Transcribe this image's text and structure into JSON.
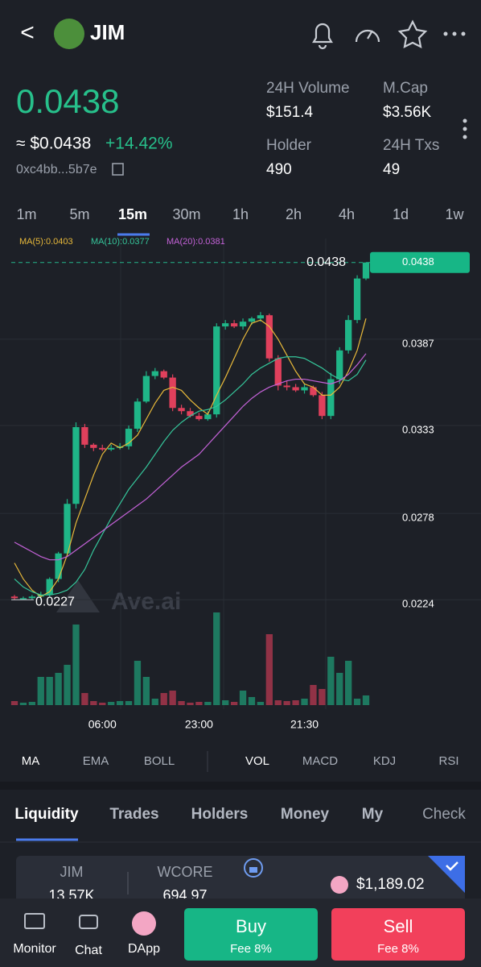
{
  "header": {
    "back": "<",
    "token": "JIM"
  },
  "price": {
    "main": "0.0438",
    "usd": "≈ $0.0438",
    "change": "+14.42%",
    "address": "0xc4bb...5b7e"
  },
  "stats": [
    {
      "label": "24H Volume",
      "value": "$151.4"
    },
    {
      "label": "M.Cap",
      "value": "$3.56K"
    },
    {
      "label": "Holder",
      "value": "490"
    },
    {
      "label": "24H Txs",
      "value": "49"
    }
  ],
  "timeframes": [
    "1m",
    "5m",
    "15m",
    "30m",
    "1h",
    "2h",
    "4h",
    "1d",
    "1w"
  ],
  "chart_data": {
    "type": "candlestick",
    "watermark": "Ave.ai",
    "categories": [
      null,
      null,
      null,
      null,
      null,
      null,
      null,
      null,
      null,
      null,
      "06:00",
      null,
      null,
      null,
      null,
      null,
      null,
      null,
      null,
      null,
      null,
      "23:00",
      null,
      null,
      null,
      null,
      null,
      null,
      null,
      null,
      null,
      null,
      null,
      "21:30",
      null,
      null,
      null,
      null,
      null,
      null,
      null
    ],
    "open": [
      0.0229,
      0.0228,
      0.0228,
      0.0229,
      0.023,
      0.024,
      0.0256,
      0.0287,
      0.0335,
      0.0324,
      0.0322,
      0.0321,
      0.0322,
      0.0323,
      0.0334,
      0.0351,
      0.0367,
      0.037,
      0.0366,
      0.0347,
      0.0345,
      0.0342,
      0.034,
      0.0343,
      0.0398,
      0.04,
      0.0398,
      0.0401,
      0.0403,
      0.0405,
      0.0378,
      0.0361,
      0.036,
      0.0358,
      0.036,
      0.0355,
      0.0342,
      0.0365,
      0.0383,
      0.0402,
      0.0428
    ],
    "high": [
      0.023,
      0.0229,
      0.023,
      0.0232,
      0.0241,
      0.0257,
      0.029,
      0.0338,
      0.0337,
      0.0325,
      0.0324,
      0.0324,
      0.0325,
      0.0336,
      0.0353,
      0.037,
      0.0372,
      0.0371,
      0.0368,
      0.0349,
      0.0347,
      0.0344,
      0.0345,
      0.04,
      0.0402,
      0.0402,
      0.0403,
      0.0404,
      0.0407,
      0.0406,
      0.038,
      0.0364,
      0.0362,
      0.0362,
      0.0361,
      0.0357,
      0.0369,
      0.0385,
      0.0405,
      0.043,
      0.0438
    ],
    "low": [
      0.0227,
      0.0227,
      0.0227,
      0.0227,
      0.0229,
      0.0238,
      0.0254,
      0.0284,
      0.0322,
      0.032,
      0.032,
      0.032,
      0.0321,
      0.0321,
      0.0332,
      0.035,
      0.0365,
      0.0365,
      0.0345,
      0.0343,
      0.0341,
      0.0339,
      0.0339,
      0.0341,
      0.0396,
      0.0397,
      0.0396,
      0.0399,
      0.0401,
      0.0376,
      0.0358,
      0.0358,
      0.0357,
      0.0356,
      0.0354,
      0.034,
      0.034,
      0.0362,
      0.0381,
      0.04,
      0.0427
    ],
    "close": [
      0.0228,
      0.0228,
      0.0229,
      0.023,
      0.024,
      0.0256,
      0.0287,
      0.0335,
      0.0324,
      0.0322,
      0.0321,
      0.0322,
      0.0323,
      0.0334,
      0.0351,
      0.0367,
      0.037,
      0.0366,
      0.0347,
      0.0345,
      0.0342,
      0.034,
      0.0343,
      0.0398,
      0.04,
      0.0398,
      0.0401,
      0.0403,
      0.0405,
      0.0378,
      0.0361,
      0.036,
      0.0358,
      0.036,
      0.0355,
      0.0342,
      0.0365,
      0.0383,
      0.0402,
      0.0428,
      0.0438
    ],
    "volume": [
      5,
      3,
      4,
      35,
      35,
      40,
      50,
      100,
      15,
      5,
      3,
      4,
      5,
      5,
      55,
      35,
      8,
      15,
      18,
      5,
      3,
      4,
      4,
      115,
      6,
      4,
      18,
      10,
      4,
      88,
      6,
      5,
      6,
      8,
      25,
      20,
      60,
      40,
      55,
      8,
      12
    ],
    "up_color": "#1fb587",
    "down_color": "#e0405c",
    "series": [
      {
        "name": "MA(5):0.0403",
        "color": "#e8b93a",
        "values": [
          0.025,
          0.024,
          0.0233,
          0.0229,
          0.0232,
          0.024,
          0.0255,
          0.0275,
          0.029,
          0.0305,
          0.0318,
          0.0325,
          0.0322,
          0.0325,
          0.033,
          0.034,
          0.035,
          0.0358,
          0.036,
          0.0358,
          0.0352,
          0.0347,
          0.0343,
          0.0355,
          0.0366,
          0.0378,
          0.039,
          0.04,
          0.0402,
          0.0398,
          0.039,
          0.038,
          0.037,
          0.0362,
          0.036,
          0.0355,
          0.0355,
          0.036,
          0.037,
          0.0383,
          0.0403
        ]
      },
      {
        "name": "MA(10):0.0377",
        "color": "#35c59a",
        "values": [
          0.024,
          0.0235,
          0.0232,
          0.023,
          0.023,
          0.0231,
          0.0233,
          0.0238,
          0.0246,
          0.0258,
          0.0268,
          0.0278,
          0.0287,
          0.0296,
          0.0303,
          0.031,
          0.0318,
          0.0326,
          0.0333,
          0.0338,
          0.0342,
          0.0345,
          0.0346,
          0.0348,
          0.0352,
          0.0357,
          0.0362,
          0.0368,
          0.0372,
          0.0375,
          0.0378,
          0.0379,
          0.0379,
          0.0378,
          0.0375,
          0.0372,
          0.0368,
          0.0365,
          0.0364,
          0.0368,
          0.0377
        ]
      },
      {
        "name": "MA(20):0.0381",
        "color": "#c462d8",
        "values": [
          0.0263,
          0.026,
          0.0257,
          0.0254,
          0.0252,
          0.0252,
          0.0254,
          0.0258,
          0.0262,
          0.0266,
          0.027,
          0.0274,
          0.0278,
          0.0282,
          0.0286,
          0.029,
          0.0295,
          0.03,
          0.0305,
          0.031,
          0.0314,
          0.0318,
          0.0324,
          0.033,
          0.0336,
          0.0342,
          0.0348,
          0.0353,
          0.0357,
          0.036,
          0.0362,
          0.0364,
          0.0365,
          0.0365,
          0.0364,
          0.0363,
          0.0362,
          0.0364,
          0.0368,
          0.0374,
          0.0381
        ]
      }
    ],
    "ylim": [
      0.0211,
      0.0453
    ],
    "yticks": [
      0.0387,
      0.0333,
      0.0278,
      0.0224
    ],
    "last_price": 0.0438,
    "max_label": 0.0438,
    "min_label": 0.0227
  },
  "indicators": [
    "MA",
    "EMA",
    "BOLL",
    "VOL",
    "MACD",
    "KDJ",
    "RSI"
  ],
  "tabs": [
    "Liquidity",
    "Trades",
    "Holders",
    "Money",
    "My",
    "Check"
  ],
  "liquidity": {
    "token_a": "JIM",
    "amount_a": "13.57K",
    "token_b": "WCORE",
    "amount_b": "694.97",
    "value": "$1,189.02"
  },
  "nav": [
    "Monitor",
    "Chat",
    "DApp"
  ],
  "buy": {
    "label": "Buy",
    "fee": "Fee 8%"
  },
  "sell": {
    "label": "Sell",
    "fee": "Fee 8%"
  }
}
